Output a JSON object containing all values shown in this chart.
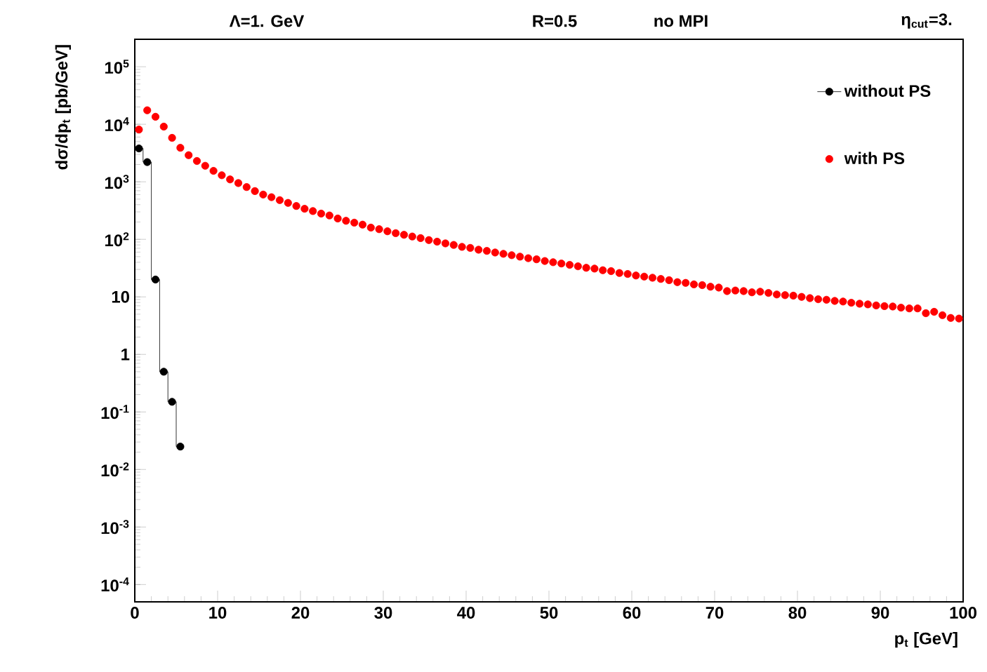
{
  "chart_data": {
    "type": "scatter",
    "annotations": [
      "Λ=1. GeV",
      "R=0.5",
      "no MPI",
      "η$_{cut}$=3."
    ],
    "xlabel": "p$_{t}$  [GeV]",
    "ylabel": "dσ/dp$_{t}$  [pb/GeV]",
    "log": "y",
    "legend": "top right",
    "marker": "circle",
    "xlim": [
      0,
      100
    ],
    "xticks": [
      0,
      10,
      20,
      30,
      40,
      50,
      60,
      70,
      80,
      90,
      100
    ],
    "ylim": [
      5e-05,
      300000
    ],
    "yticks": [
      {
        "value": 0.0001,
        "label": "10$^{-4}$"
      },
      {
        "value": 0.001,
        "label": "10$^{-3}$"
      },
      {
        "value": 0.01,
        "label": "10$^{-2}$"
      },
      {
        "value": 0.1,
        "label": "10$^{-1}$"
      },
      1,
      10,
      {
        "value": 100,
        "label": "10$^{2}$"
      },
      {
        "value": 1000,
        "label": "10$^{3}$"
      },
      {
        "value": 10000,
        "label": "10$^{4}$"
      },
      {
        "value": 100000,
        "label": "10$^{5}$"
      }
    ],
    "series": [
      {
        "name": "without PS",
        "type": "step",
        "color": "#000000",
        "x": [
          0.5,
          1.5,
          2.5,
          3.5,
          4.5,
          5.5
        ],
        "values": [
          3800,
          2200,
          20,
          0.5,
          0.15,
          0.025
        ]
      },
      {
        "name": "with PS",
        "color": "#ff0000",
        "x": [
          0.5,
          1.5,
          2.5,
          3.5,
          4.5,
          5.5,
          6.5,
          7.5,
          8.5,
          9.5,
          10.5,
          11.5,
          12.5,
          13.5,
          14.5,
          15.5,
          16.5,
          17.5,
          18.5,
          19.5,
          20.5,
          21.5,
          22.5,
          23.5,
          24.5,
          25.5,
          26.5,
          27.5,
          28.5,
          29.5,
          30.5,
          31.5,
          32.5,
          33.5,
          34.5,
          35.5,
          36.5,
          37.5,
          38.5,
          39.5,
          40.5,
          41.5,
          42.5,
          43.5,
          44.5,
          45.5,
          46.5,
          47.5,
          48.5,
          49.5,
          50.5,
          51.5,
          52.5,
          53.5,
          54.5,
          55.5,
          56.5,
          57.5,
          58.5,
          59.5,
          60.5,
          61.5,
          62.5,
          63.5,
          64.5,
          65.5,
          66.5,
          67.5,
          68.5,
          69.5,
          70.5,
          71.5,
          72.5,
          73.5,
          74.5,
          75.5,
          76.5,
          77.5,
          78.5,
          79.5,
          80.5,
          81.5,
          82.5,
          83.5,
          84.5,
          85.5,
          86.5,
          87.5,
          88.5,
          89.5,
          90.5,
          91.5,
          92.5,
          93.5,
          94.5,
          95.5,
          96.5,
          97.5,
          98.5,
          99.5
        ],
        "values": [
          8100,
          17500,
          13500,
          9100,
          5800,
          3900,
          2900,
          2300,
          1900,
          1550,
          1300,
          1100,
          950,
          810,
          690,
          600,
          540,
          480,
          430,
          380,
          340,
          310,
          280,
          260,
          230,
          210,
          195,
          180,
          160,
          150,
          138,
          128,
          120,
          112,
          105,
          97,
          91,
          85,
          80,
          74,
          71,
          66,
          63,
          59,
          56,
          53,
          50,
          47,
          45,
          42,
          40,
          38,
          36,
          34,
          32,
          31,
          29,
          28,
          26,
          25,
          23.5,
          22.5,
          21.5,
          20.5,
          19.5,
          18,
          17.5,
          16.5,
          16,
          15,
          14.5,
          12.6,
          12.9,
          12.6,
          12,
          12.3,
          11.7,
          11,
          10.7,
          10.5,
          10,
          9.5,
          9.1,
          8.9,
          8.5,
          8.3,
          7.9,
          7.6,
          7.4,
          7.1,
          6.9,
          6.8,
          6.5,
          6.3,
          6.3,
          5.2,
          5.5,
          4.8,
          4.3,
          4.2
        ]
      }
    ]
  }
}
